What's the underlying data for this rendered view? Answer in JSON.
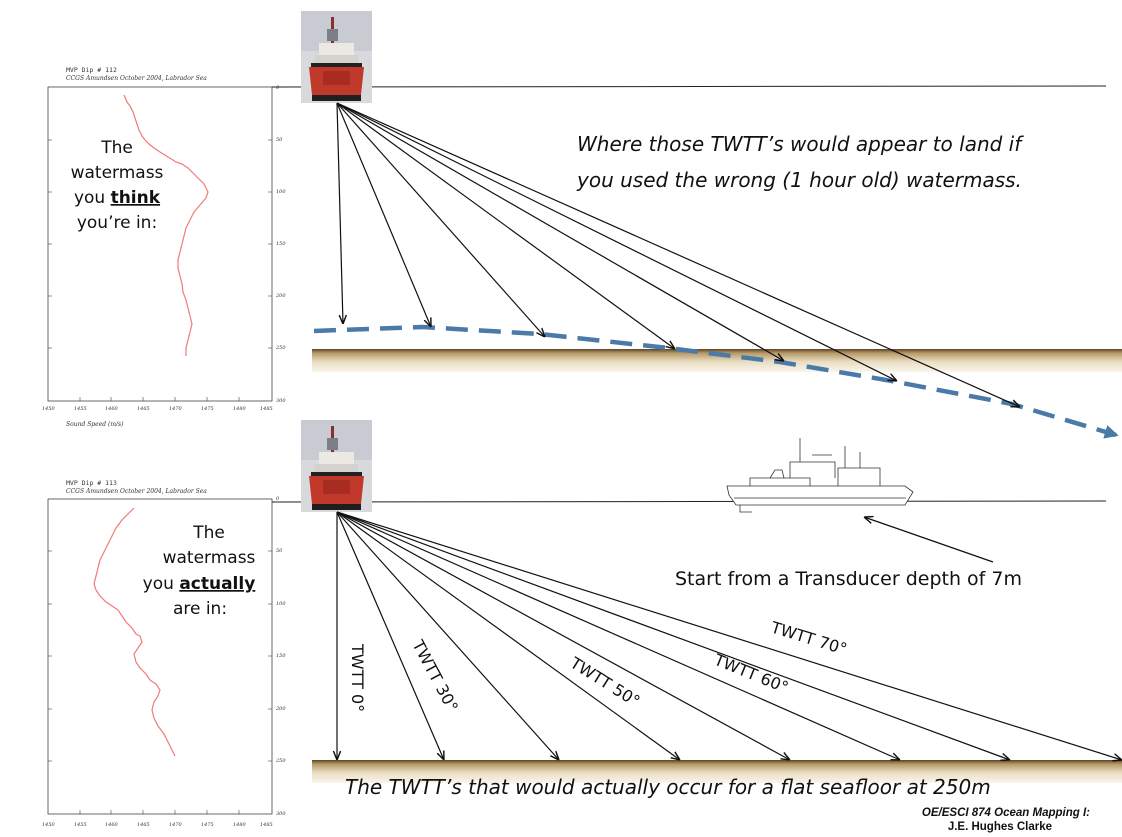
{
  "top_profile": {
    "title": "MVP Dip # 112",
    "subtitle": "CCGS Amundsen October 2004, Labrador Sea",
    "xlabel": "Sound Speed (m/s)",
    "x_ticks": [
      "1450",
      "1455",
      "1460",
      "1465",
      "1470",
      "1475",
      "1480",
      "1485"
    ],
    "y_ticks": [
      "0",
      "50",
      "100",
      "150",
      "200",
      "250",
      "300"
    ],
    "note_lines": [
      {
        "text": "The"
      },
      {
        "text": "watermass"
      },
      {
        "prefix": "you ",
        "emphasis": "think"
      },
      {
        "text": "you’re in:"
      }
    ]
  },
  "bottom_profile": {
    "title": "MVP Dip # 113",
    "subtitle": "CCGS Amundsen October 2004, Labrador Sea",
    "x_ticks": [
      "1450",
      "1455",
      "1460",
      "1465",
      "1470",
      "1475",
      "1480",
      "1485"
    ],
    "y_ticks": [
      "0",
      "50",
      "100",
      "150",
      "200",
      "250",
      "300"
    ],
    "note_lines": [
      {
        "text": "The"
      },
      {
        "text": "watermass"
      },
      {
        "prefix": "you ",
        "emphasis": "actually"
      },
      {
        "text": "are in:"
      }
    ]
  },
  "top_panel": {
    "caption_lines": [
      "Where those TWTT’s would appear to land if",
      "you used the wrong (1 hour old) watermass."
    ]
  },
  "bottom_panel": {
    "transducer_note": "Start from a Transducer depth of 7m",
    "beam_labels": [
      "TWTT 0°",
      "TWTT 30°",
      "TWTT 50°",
      "TWTT 60°",
      "TWTT 70°"
    ],
    "caption": "The TWTT’s that would actually occur for a flat seafloor at 250m"
  },
  "credit": {
    "course": "OE/ESCI 874 Ocean Mapping I:",
    "author": "J.E. Hughes Clarke"
  },
  "colors": {
    "seafloor": "#b39a6e",
    "apparent_seafloor_line": "#4a7aa8",
    "sound_speed_profile": "#f07a7a",
    "ship_hull": "#c0392b"
  },
  "icons": [
    "ship-icon",
    "ship-outline-icon"
  ]
}
